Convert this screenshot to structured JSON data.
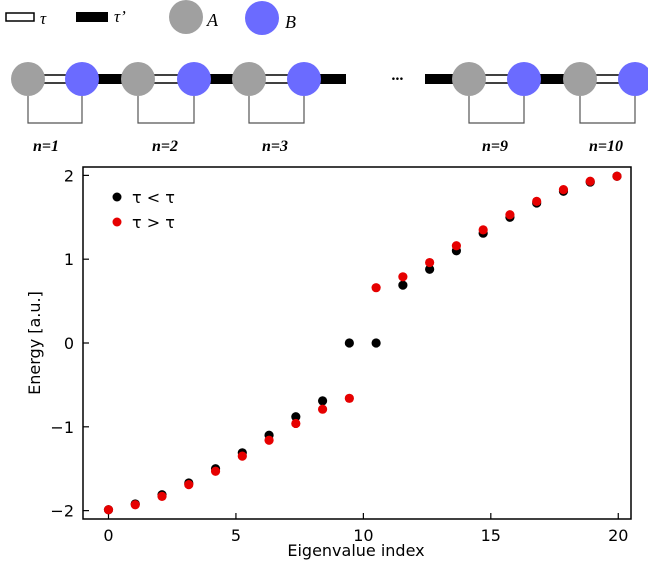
{
  "legend_top": {
    "tau_label": "τ",
    "tau_prime_label": "τ’",
    "a_label": "A",
    "b_label": "B"
  },
  "chain": {
    "ellipsis": "...",
    "cell_labels": [
      "n=1",
      "n=2",
      "n=3",
      "n=9",
      "n=10"
    ]
  },
  "colors": {
    "site_a": "#a0a0a0",
    "site_b": "#6b6bff",
    "series_1": "#000000",
    "series_2": "#e60000"
  },
  "chart_data": {
    "type": "scatter",
    "title": "",
    "xlabel": "Eigenvalue index",
    "ylabel": "Energy [a.u.]",
    "xlim": [
      -1.0,
      20.5
    ],
    "ylim": [
      -2.1,
      2.1
    ],
    "x_ticks": [
      0,
      5,
      10,
      15,
      20
    ],
    "y_ticks": [
      -2,
      -1,
      0,
      1,
      2
    ],
    "x_tick_labels": [
      "0",
      "5",
      "10",
      "15",
      "20"
    ],
    "y_tick_labels": [
      "−2",
      "−1",
      "0",
      "1",
      "2"
    ],
    "grid": false,
    "legend_position": "top-left",
    "series": [
      {
        "name": "τ < τ",
        "color": "#000000",
        "x": [
          0,
          1.05,
          2.1,
          3.15,
          4.2,
          5.25,
          6.3,
          7.35,
          8.4,
          9.45,
          10.5,
          11.55,
          12.6,
          13.65,
          14.7,
          15.75,
          16.8,
          17.85,
          18.9,
          19.95
        ],
        "y": [
          -1.99,
          -1.92,
          -1.81,
          -1.67,
          -1.5,
          -1.31,
          -1.1,
          -0.88,
          -0.69,
          0.0,
          0.0,
          0.69,
          0.88,
          1.1,
          1.31,
          1.5,
          1.67,
          1.81,
          1.92,
          1.99
        ]
      },
      {
        "name": "τ > τ",
        "color": "#e60000",
        "x": [
          0,
          1.05,
          2.1,
          3.15,
          4.2,
          5.25,
          6.3,
          7.35,
          8.4,
          9.45,
          10.5,
          11.55,
          12.6,
          13.65,
          14.7,
          15.75,
          16.8,
          17.85,
          18.9,
          19.95
        ],
        "y": [
          -1.99,
          -1.93,
          -1.83,
          -1.69,
          -1.53,
          -1.35,
          -1.16,
          -0.96,
          -0.79,
          -0.66,
          0.66,
          0.79,
          0.96,
          1.16,
          1.35,
          1.53,
          1.69,
          1.83,
          1.93,
          1.99
        ]
      }
    ]
  }
}
